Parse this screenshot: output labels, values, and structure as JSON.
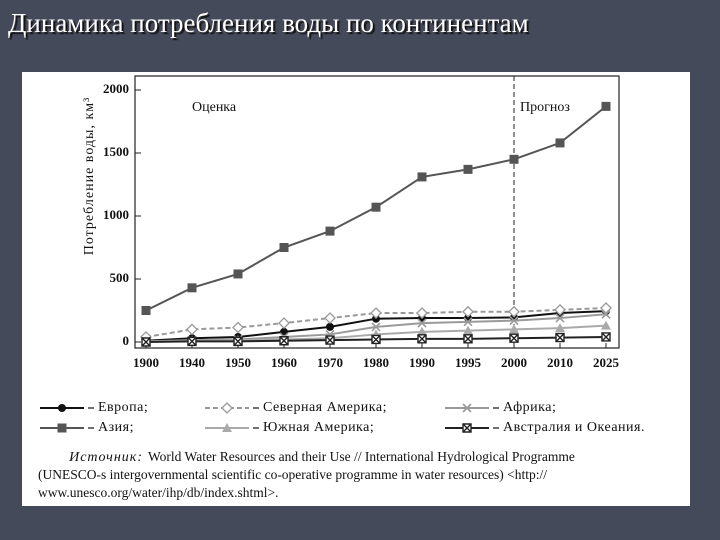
{
  "chart_data": {
    "type": "line",
    "title": "Динамика потребления воды по континентам",
    "ylabel": "Потребление воды, км³",
    "annotations": [
      "Оценка",
      "Прогноз"
    ],
    "categories": [
      "1900",
      "1940",
      "1950",
      "1960",
      "1970",
      "1980",
      "1990",
      "1995",
      "2000",
      "2010",
      "2025"
    ],
    "ylim": [
      0,
      2000
    ],
    "yticks": [
      0,
      500,
      1000,
      1500,
      2000
    ],
    "grid": false,
    "series": [
      {
        "name": "Европа;",
        "color": "#111111",
        "marker": "circle",
        "dash": false,
        "values": [
          10,
          30,
          40,
          80,
          120,
          185,
          190,
          190,
          195,
          230,
          245
        ]
      },
      {
        "name": "Северная Америка;",
        "color": "#999999",
        "marker": "diamond",
        "dash": true,
        "values": [
          40,
          100,
          115,
          150,
          190,
          230,
          230,
          240,
          240,
          255,
          270
        ]
      },
      {
        "name": "Африка;",
        "color": "#9a9a9a",
        "marker": "cross",
        "dash": false,
        "values": [
          5,
          15,
          20,
          40,
          60,
          120,
          150,
          160,
          170,
          190,
          220
        ]
      },
      {
        "name": "Азия;",
        "color": "#555555",
        "marker": "square",
        "dash": false,
        "values": [
          250,
          430,
          540,
          750,
          880,
          1070,
          1310,
          1370,
          1450,
          1580,
          1870
        ]
      },
      {
        "name": "Южная Америка;",
        "color": "#aaaaaa",
        "marker": "triangle",
        "dash": false,
        "values": [
          5,
          10,
          15,
          20,
          30,
          60,
          80,
          90,
          100,
          110,
          130
        ]
      },
      {
        "name": "Австралия и Океания.",
        "color": "#222222",
        "marker": "boxx",
        "dash": false,
        "values": [
          0,
          5,
          5,
          10,
          15,
          20,
          25,
          25,
          30,
          35,
          40
        ]
      }
    ],
    "source_label": "Источник:",
    "source_lines": [
      "World Water Resources and their Use // International Hydrological Programme",
      "(UNESCO-s intergovernmental scientific co-operative programme in water resources) <http://",
      "www.unesco.org/water/ihp/db/index.shtml>."
    ]
  }
}
